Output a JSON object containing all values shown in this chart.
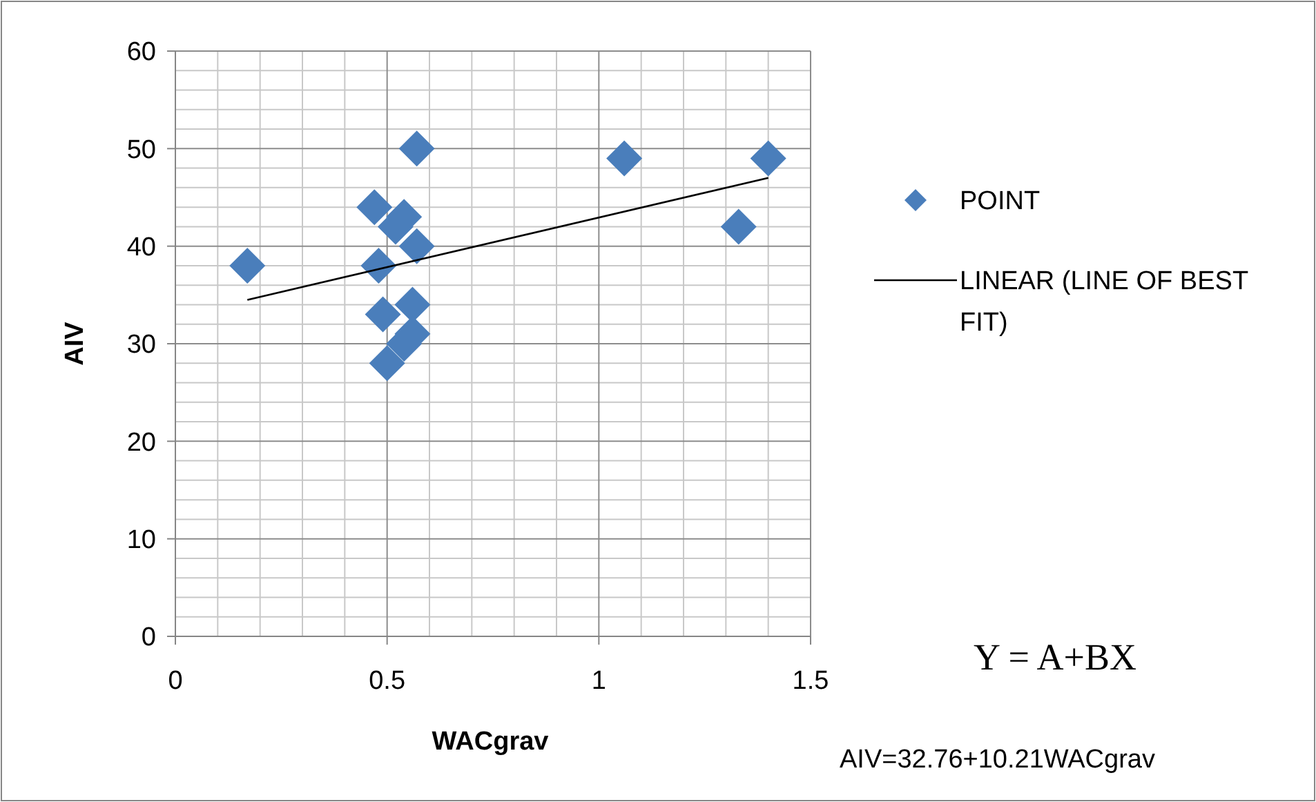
{
  "chart_data": {
    "type": "scatter",
    "xlabel": "WACgrav",
    "ylabel": "AIV",
    "xlim": [
      0,
      1.5
    ],
    "ylim": [
      0,
      60
    ],
    "xticks": [
      0,
      0.5,
      1,
      1.5
    ],
    "yticks": [
      0,
      10,
      20,
      30,
      40,
      50,
      60
    ],
    "grid": true,
    "legend": "right",
    "series": [
      {
        "name": "POINT",
        "color": "#4a7ebb",
        "marker": "diamond",
        "x": [
          0.17,
          0.47,
          0.48,
          0.49,
          0.57,
          0.52,
          0.54,
          0.57,
          0.56,
          0.56,
          0.54,
          0.5,
          1.06,
          1.33,
          1.4
        ],
        "values": [
          38,
          44,
          38,
          33,
          50,
          42,
          43,
          40,
          34,
          31,
          30,
          28,
          49,
          42,
          49
        ]
      },
      {
        "name": "LINEAR (LINE OF BEST FIT)",
        "type": "line",
        "color": "#000000",
        "marker": "none",
        "line_style": "solid",
        "x": [
          0.17,
          1.4
        ],
        "values": [
          34.5,
          47
        ]
      }
    ],
    "annotations": [
      "Y = A+BX",
      "AIV=32.76+10.21WACgrav"
    ]
  }
}
